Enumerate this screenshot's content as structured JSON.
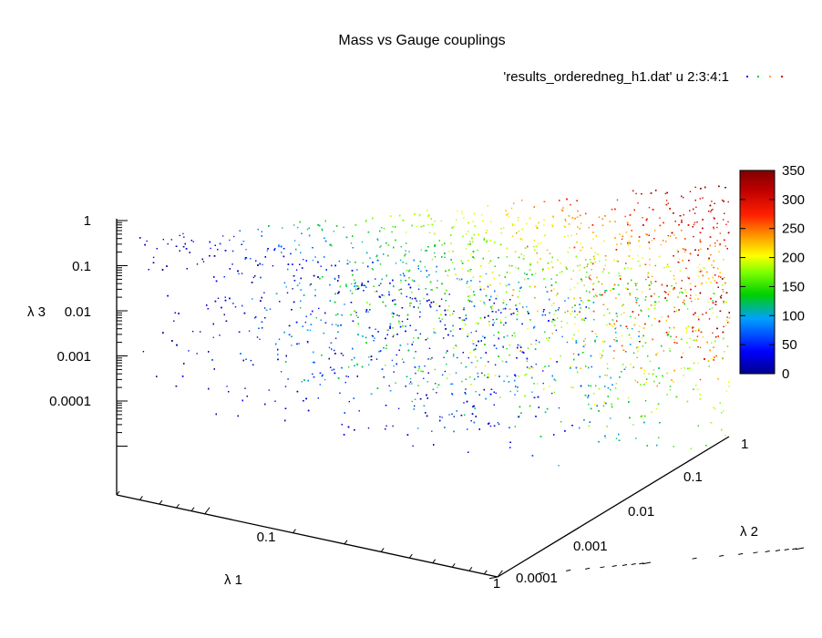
{
  "chart_data": {
    "type": "scatter",
    "title": "Mass vs Gauge couplings",
    "legend": {
      "label": "'results_orderedneg_h1.dat' u 2:3:4:1",
      "placement": "top-right"
    },
    "axes": {
      "x": {
        "label": "λ 1",
        "scale": "log",
        "range": [
          0.05,
          1
        ],
        "ticks": [
          "0.1",
          "1"
        ]
      },
      "y": {
        "label": "λ 2",
        "scale": "log",
        "range": [
          0.0001,
          1
        ],
        "ticks": [
          "0.0001",
          "0.001",
          "0.01",
          "0.1",
          "1"
        ]
      },
      "z": {
        "label": "λ 3",
        "scale": "log",
        "range": [
          1e-05,
          1
        ],
        "ticks": [
          "0.0001",
          "0.001",
          "0.01",
          "0.1",
          "1"
        ]
      }
    },
    "colorbar": {
      "range": [
        0,
        350
      ],
      "ticks": [
        "0",
        "50",
        "100",
        "150",
        "200",
        "250",
        "300",
        "350"
      ],
      "palette": [
        "#00008b",
        "#0000ff",
        "#00a0ff",
        "#00d000",
        "#80ff00",
        "#ffff00",
        "#ffa000",
        "#ff2000",
        "#c00000",
        "#800000"
      ]
    },
    "point_cloud": {
      "description_note": "",
      "color_value_range_along_lambda2": [
        0,
        350
      ],
      "lambda1_range": [
        0.05,
        1
      ],
      "lambda2_range": [
        0.0001,
        1
      ],
      "lambda3_range": [
        3e-05,
        1
      ]
    }
  }
}
